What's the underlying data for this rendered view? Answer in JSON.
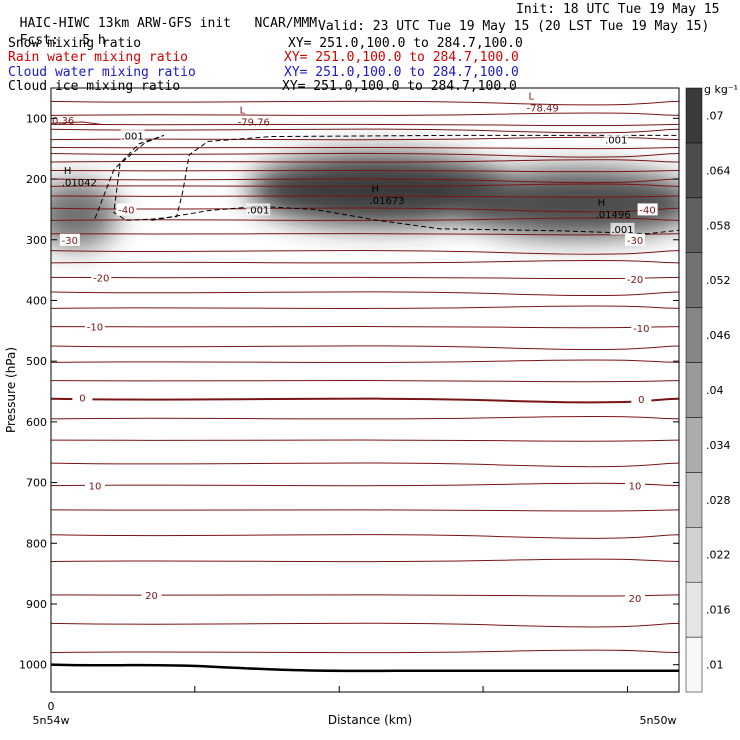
{
  "header": {
    "title": "HAIC-HIWC 13km ARW-GFS init",
    "org": "NCAR/MMM",
    "init": "Init: 18 UTC Tue 19 May 15",
    "fcst_label": "Fcst:",
    "fcst_value": "5 h",
    "valid": "Valid: 23 UTC Tue 19 May 15 (20 LST Tue 19 May 15)"
  },
  "fields": [
    {
      "name": "Snow mixing ratio",
      "xy": "XY= 251.0,100.0 to 284.7,100.0",
      "color": "#000000"
    },
    {
      "name": "Rain water mixing ratio",
      "xy": "XY= 251.0,100.0 to 284.7,100.0",
      "color": "#d40000"
    },
    {
      "name": "Cloud water mixing ratio",
      "xy": "XY= 251.0,100.0 to 284.7,100.0",
      "color": "#1a1acc"
    },
    {
      "name": "Cloud ice mixing ratio",
      "xy": "XY= 251.0,100.0 to 284.7,100.0",
      "color": "#000000"
    }
  ],
  "colors": {
    "temperature_contour": "#7a1515",
    "cloud_ice_contour": "#000000",
    "terrain": "#000000"
  },
  "chart_data": {
    "type": "heatmap",
    "ylabel": "Pressure (hPa)",
    "xlabel": "Distance (km)",
    "y_scale": "pressure (inverted)",
    "ylim": [
      1045,
      50
    ],
    "xlim": [
      0,
      1
    ],
    "y_ticks": [
      100,
      200,
      300,
      400,
      500,
      600,
      700,
      800,
      900,
      1000
    ],
    "x_tick_labels": [
      "0"
    ],
    "x_end_labels": [
      "5n54w",
      "5n50w"
    ],
    "colorbar": {
      "unit": "g kg⁻¹",
      "levels": [
        0.01,
        0.016,
        0.022,
        0.028,
        0.034,
        0.04,
        0.046,
        0.052,
        0.058,
        0.064,
        0.07
      ],
      "labels": [
        ".01",
        ".016",
        ".022",
        ".028",
        ".034",
        ".04",
        ".046",
        ".052",
        ".058",
        ".064",
        ".07"
      ]
    },
    "isotherm_labels": [
      {
        "text": "-40",
        "x": 0.12,
        "p": 250
      },
      {
        "text": "-40",
        "x": 0.95,
        "p": 250
      },
      {
        "text": "-30",
        "x": 0.03,
        "p": 300
      },
      {
        "text": "-30",
        "x": 0.93,
        "p": 300
      },
      {
        "text": "-20",
        "x": 0.08,
        "p": 362
      },
      {
        "text": "-20",
        "x": 0.93,
        "p": 365
      },
      {
        "text": "-10",
        "x": 0.07,
        "p": 443
      },
      {
        "text": "-10",
        "x": 0.94,
        "p": 445
      },
      {
        "text": "0",
        "x": 0.05,
        "p": 560
      },
      {
        "text": "0",
        "x": 0.94,
        "p": 562
      },
      {
        "text": "10",
        "x": 0.07,
        "p": 705
      },
      {
        "text": "10",
        "x": 0.93,
        "p": 705
      },
      {
        "text": "20",
        "x": 0.16,
        "p": 885
      },
      {
        "text": "20",
        "x": 0.93,
        "p": 890
      }
    ],
    "extrema": [
      {
        "kind": "H",
        "value": ".01042",
        "x": 0.03,
        "p": 195
      },
      {
        "kind": "H",
        "value": ".01673",
        "x": 0.52,
        "p": 225
      },
      {
        "kind": "H",
        "value": ".01496",
        "x": 0.88,
        "p": 248
      },
      {
        "kind": "L",
        "value": "-79.76",
        "x": 0.31,
        "p": 95
      },
      {
        "kind": "L",
        "value": "-78.49",
        "x": 0.77,
        "p": 72
      }
    ],
    "temp_value_label": {
      "text": "0.36",
      "x": 0.0,
      "p": 103
    },
    "ice_contour_labels": [
      {
        "text": ".001",
        "x": 0.13,
        "p": 128
      },
      {
        "text": ".001",
        "x": 0.9,
        "p": 135
      },
      {
        "text": ".001",
        "x": 0.33,
        "p": 250
      },
      {
        "text": ".001",
        "x": 0.91,
        "p": 282
      }
    ],
    "series": [
      {
        "name": "Cloud ice mixing ratio",
        "blobs": [
          {
            "x": 0.04,
            "p": 258,
            "peak": 0.01042
          },
          {
            "x": 0.52,
            "p": 218,
            "peak": 0.01673
          },
          {
            "x": 0.84,
            "p": 240,
            "peak": 0.01496
          }
        ]
      }
    ]
  }
}
